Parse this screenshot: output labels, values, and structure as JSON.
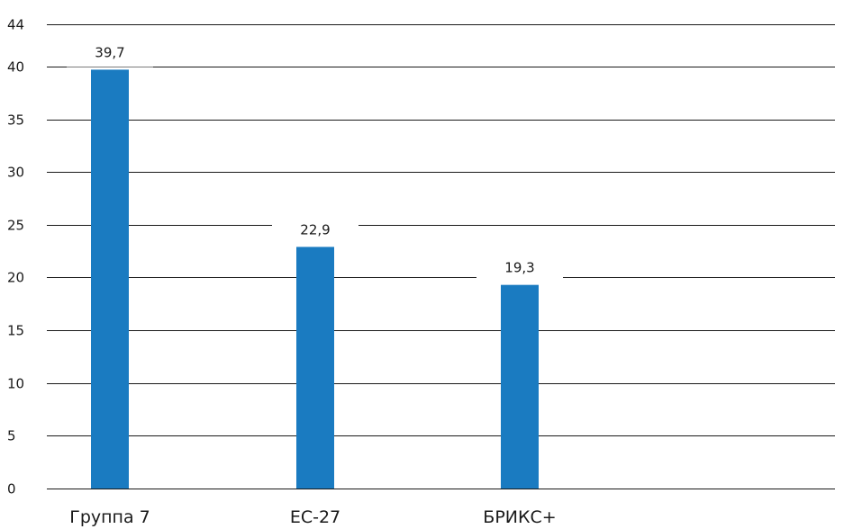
{
  "chart_data": {
    "type": "bar",
    "categories": [
      "Группа 7",
      "ЕС-27",
      "БРИКС+"
    ],
    "values": [
      39.7,
      22.9,
      19.3
    ],
    "value_labels": [
      "39,7",
      "22,9",
      "19,3"
    ],
    "yticks": [
      0,
      5,
      10,
      15,
      20,
      25,
      30,
      35,
      40,
      44
    ],
    "ylim": [
      0,
      44
    ],
    "grid": true,
    "legend": "none",
    "colors": {
      "bar": "#1a7bc1",
      "grid": "#1a1a1a",
      "text": "#1a1a1a"
    }
  }
}
